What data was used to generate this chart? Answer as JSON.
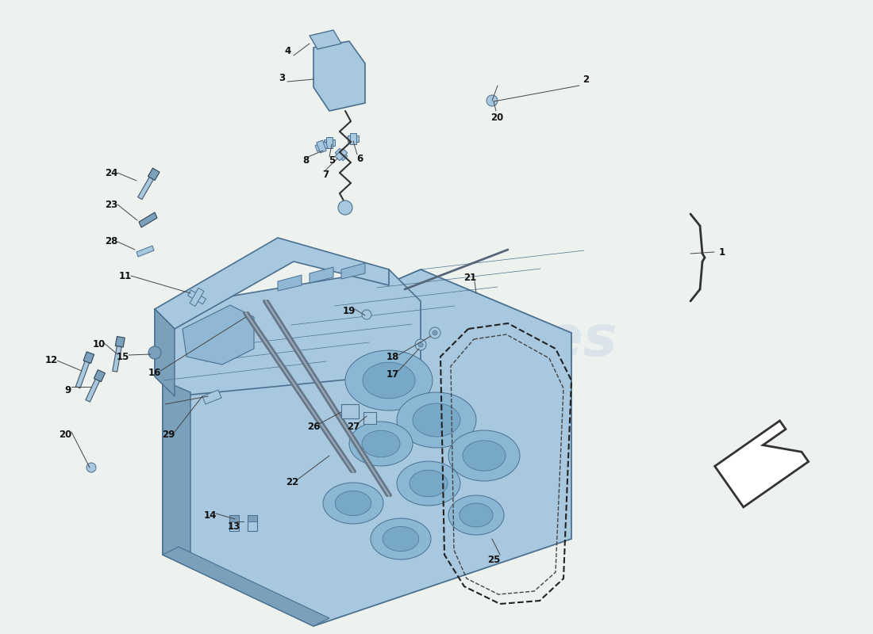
{
  "background_color": "#eef2ee",
  "main_color": "#a8c8e0",
  "dark_color": "#7aa0bc",
  "mid_color": "#90b8d4",
  "outline_color": "#4a7090",
  "line_color": "#333333",
  "label_color": "#111111",
  "watermark_color": "#c8d8e8",
  "gasket_color": "#111111",
  "arrow_color": "#111111",
  "part_numbers": [
    "1",
    "2",
    "3",
    "4",
    "5",
    "6",
    "7",
    "8",
    "9",
    "10",
    "11",
    "12",
    "13",
    "14",
    "15",
    "16",
    "17",
    "18",
    "19",
    "20",
    "21",
    "22",
    "23",
    "24",
    "25",
    "26",
    "27",
    "28",
    "29"
  ]
}
